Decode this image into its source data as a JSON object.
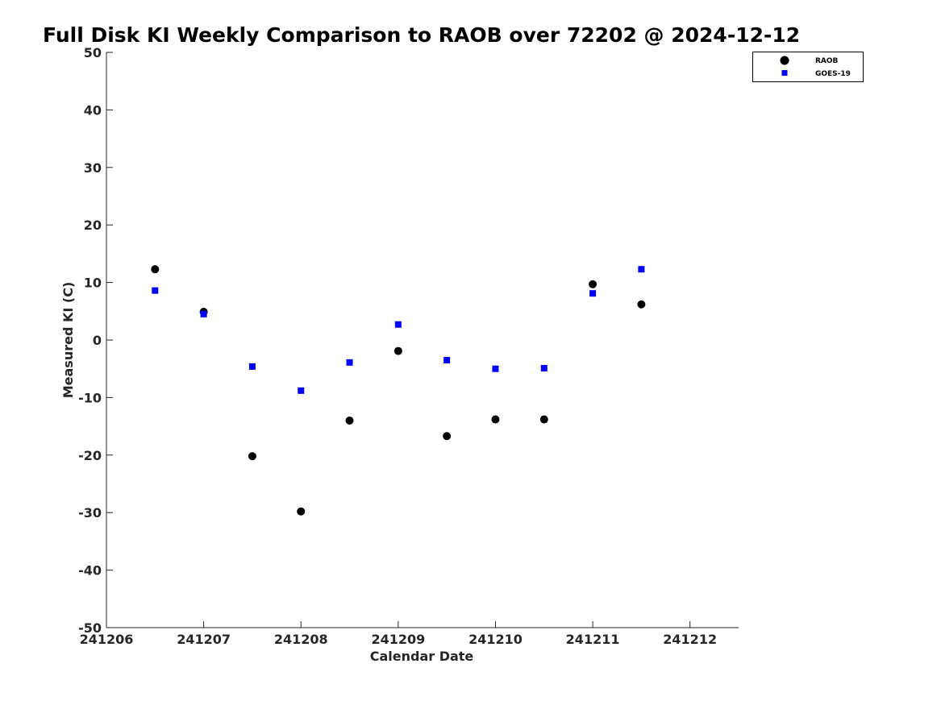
{
  "chart_data": {
    "type": "scatter",
    "title": "Full Disk KI Weekly Comparison to RAOB over 72202 @ 2024-12-12",
    "xlabel": "Calendar Date",
    "ylabel": "Measured KI (C)",
    "xlim": [
      "2024-12-06",
      "2024-12-12 12:00"
    ],
    "ylim": [
      -50,
      50
    ],
    "x_tick_labels": [
      "241206",
      "241207",
      "241208",
      "241209",
      "241210",
      "241211",
      "241212"
    ],
    "y_tick_labels": [
      "50",
      "40",
      "30",
      "20",
      "10",
      "0",
      "-10",
      "-20",
      "-30",
      "-40",
      "-50"
    ],
    "grid": false,
    "legend_position": "top-right",
    "series": [
      {
        "name": "RAOB",
        "marker": "circle",
        "color": "#000000",
        "x": [
          "2024-12-06 12:00",
          "2024-12-07 00:00",
          "2024-12-07 12:00",
          "2024-12-08 00:00",
          "2024-12-08 12:00",
          "2024-12-09 00:00",
          "2024-12-09 12:00",
          "2024-12-10 00:00",
          "2024-12-10 12:00",
          "2024-12-11 00:00",
          "2024-12-11 12:00"
        ],
        "y": [
          12.3,
          4.9,
          -20.2,
          -29.8,
          -14.0,
          -1.9,
          -16.7,
          -13.8,
          -13.8,
          9.7,
          6.2
        ]
      },
      {
        "name": "GOES-19",
        "marker": "square",
        "color": "#0000ff",
        "x": [
          "2024-12-06 12:00",
          "2024-12-07 00:00",
          "2024-12-07 12:00",
          "2024-12-08 00:00",
          "2024-12-08 12:00",
          "2024-12-09 00:00",
          "2024-12-09 12:00",
          "2024-12-10 00:00",
          "2024-12-10 12:00",
          "2024-12-11 00:00",
          "2024-12-11 12:00"
        ],
        "y": [
          8.6,
          4.5,
          -4.6,
          -8.8,
          -3.9,
          2.7,
          -3.5,
          -5.0,
          -4.9,
          8.1,
          12.3
        ]
      }
    ]
  }
}
